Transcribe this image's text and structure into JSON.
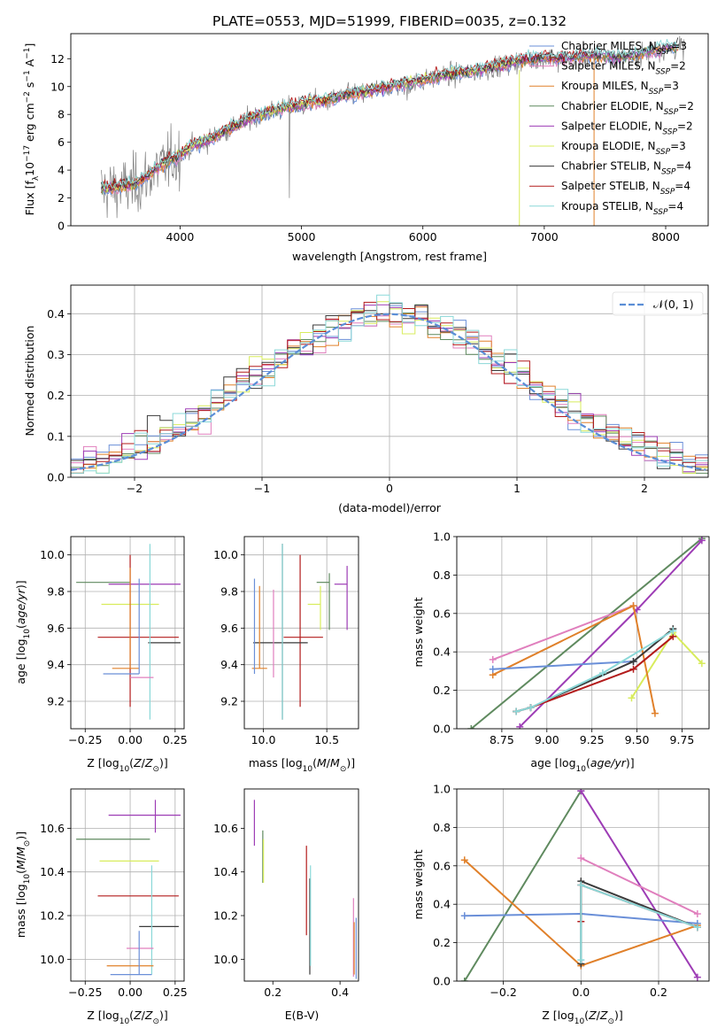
{
  "colors": {
    "Chabrier MILES": "#6a8fd8",
    "Salpeter MILES": "#e07fbd",
    "Kroupa MILES": "#e0802a",
    "Chabrier ELODIE": "#5f8a5f",
    "Salpeter ELODIE": "#9d3cb5",
    "Kroupa ELODIE": "#d8ec5c",
    "Chabrier STELIB": "#3a3a3a",
    "Salpeter STELIB": "#b31b1b",
    "Kroupa STELIB": "#8ad8d8",
    "data": "#808080",
    "normal": "#5b8ed6"
  },
  "chart_data": [
    {
      "id": "spectrum",
      "type": "line",
      "title": "PLATE=0553, MJD=51999, FIBERID=0035, z=0.132",
      "xlabel": "wavelength [Angstrom, rest frame]",
      "ylabel": "Flux [f_λ10^-17 erg cm^-2 s^-1 A^-1]",
      "xlim": [
        3100,
        8350
      ],
      "ylim": [
        0,
        13.8
      ],
      "xticks": [
        4000,
        5000,
        6000,
        7000,
        8000
      ],
      "yticks": [
        0,
        2,
        4,
        6,
        8,
        10,
        12
      ],
      "legend": [
        "Chabrier MILES, N_SSP=3",
        "Salpeter MILES, N_SSP=2",
        "Kroupa MILES, N_SSP=3",
        "Chabrier ELODIE, N_SSP=2",
        "Salpeter ELODIE, N_SSP=2",
        "Kroupa ELODIE, N_SSP=3",
        "Chabrier STELIB, N_SSP=4",
        "Salpeter STELIB, N_SSP=4",
        "Kroupa STELIB, N_SSP=4"
      ],
      "legend_position": "upper right",
      "continuum": [
        [
          3350,
          2.6
        ],
        [
          3500,
          2.7
        ],
        [
          3600,
          2.8
        ],
        [
          3700,
          3.3
        ],
        [
          3800,
          4.0
        ],
        [
          3900,
          4.6
        ],
        [
          4000,
          5.0
        ],
        [
          4100,
          5.7
        ],
        [
          4200,
          6.0
        ],
        [
          4300,
          6.4
        ],
        [
          4400,
          6.9
        ],
        [
          4500,
          7.3
        ],
        [
          4600,
          7.8
        ],
        [
          4700,
          8.0
        ],
        [
          4800,
          8.3
        ],
        [
          4900,
          8.5
        ],
        [
          5000,
          8.6
        ],
        [
          5100,
          8.9
        ],
        [
          5200,
          8.9
        ],
        [
          5300,
          9.2
        ],
        [
          5400,
          9.4
        ],
        [
          5500,
          9.5
        ],
        [
          5600,
          9.7
        ],
        [
          5700,
          9.9
        ],
        [
          5800,
          10.1
        ],
        [
          5900,
          10.2
        ],
        [
          6000,
          10.4
        ],
        [
          6100,
          10.6
        ],
        [
          6200,
          10.8
        ],
        [
          6300,
          10.9
        ],
        [
          6400,
          11.0
        ],
        [
          6500,
          11.2
        ],
        [
          6600,
          11.4
        ],
        [
          6700,
          11.6
        ],
        [
          6800,
          11.8
        ],
        [
          6900,
          11.9
        ],
        [
          7000,
          12.1
        ],
        [
          7100,
          11.9
        ],
        [
          7200,
          12.0
        ],
        [
          7300,
          12.1
        ],
        [
          7400,
          12.2
        ],
        [
          7500,
          12.2
        ],
        [
          7600,
          12.0
        ],
        [
          7700,
          12.2
        ],
        [
          7800,
          12.3
        ],
        [
          7900,
          12.5
        ],
        [
          8000,
          12.7
        ],
        [
          8100,
          12.8
        ]
      ]
    },
    {
      "id": "residuals",
      "type": "line",
      "xlabel": "(data-model)/error",
      "ylabel": "Normed distribution",
      "xlim": [
        -2.5,
        2.5
      ],
      "ylim": [
        0,
        0.47
      ],
      "xticks": [
        -2,
        -1,
        0,
        1,
        2
      ],
      "yticks": [
        0.0,
        0.1,
        0.2,
        0.3,
        0.4
      ],
      "legend": [
        "𝒩(0, 1)"
      ],
      "legend_position": "upper right",
      "grid": true,
      "bin_width": 0.1
    },
    {
      "id": "age_vs_Z",
      "type": "scatter",
      "xlabel": "Z [log10(Z/Z⊙)]",
      "ylabel": "age  [log10(age/yr)]",
      "xlim": [
        -0.33,
        0.3
      ],
      "ylim": [
        9.05,
        10.1
      ],
      "xticks": [
        -0.25,
        0.0,
        0.25
      ],
      "yticks": [
        9.2,
        9.4,
        9.6,
        9.8,
        10.0
      ],
      "grid": true,
      "points": [
        {
          "model": "Chabrier ELODIE",
          "x": 0.0,
          "xerr": [
            0.3,
            0.0
          ],
          "y": 9.85,
          "yerr": [
            0.0,
            0.0
          ]
        },
        {
          "model": "Salpeter ELODIE",
          "x": 0.14,
          "xerr": [
            0.26,
            0.14
          ],
          "y": 9.84,
          "yerr": [
            0.0,
            0.0
          ]
        },
        {
          "model": "Kroupa ELODIE",
          "x": 0.0,
          "xerr": [
            0.16,
            0.16
          ],
          "y": 9.73,
          "yerr": [
            0.0,
            0.0
          ]
        },
        {
          "model": "Salpeter STELIB",
          "x": 0.0,
          "xerr": [
            0.18,
            0.27
          ],
          "y": 9.55,
          "yerr": [
            0.38,
            0.45
          ]
        },
        {
          "model": "Chabrier STELIB",
          "x": 0.2,
          "xerr": [
            0.1,
            0.08
          ],
          "y": 9.52,
          "yerr": [
            0.0,
            0.0
          ]
        },
        {
          "model": "Kroupa STELIB",
          "x": 0.11,
          "xerr": [
            0.0,
            0.0
          ],
          "y": 9.52,
          "yerr": [
            0.42,
            0.54
          ]
        },
        {
          "model": "Kroupa MILES",
          "x": 0.0,
          "xerr": [
            0.1,
            0.05
          ],
          "y": 9.38,
          "yerr": [
            0.0,
            0.55
          ]
        },
        {
          "model": "Chabrier MILES",
          "x": 0.05,
          "xerr": [
            0.2,
            0.0
          ],
          "y": 9.35,
          "yerr": [
            0.0,
            0.52
          ]
        },
        {
          "model": "Salpeter MILES",
          "x": 0.1,
          "xerr": [
            0.1,
            0.03
          ],
          "y": 9.33,
          "yerr": [
            0.0,
            0.0
          ]
        }
      ]
    },
    {
      "id": "age_vs_mass",
      "type": "scatter",
      "xlabel": "mass [log10(M/M⊙)]",
      "xlim": [
        9.85,
        10.75
      ],
      "ylim": [
        9.05,
        10.1
      ],
      "xticks": [
        10.0,
        10.5
      ],
      "yticks": [
        9.2,
        9.4,
        9.6,
        9.8,
        10.0
      ],
      "grid": true,
      "points": [
        {
          "model": "Chabrier ELODIE",
          "x": 10.52,
          "xerr": [
            0.1,
            0.0
          ],
          "y": 9.85,
          "yerr": [
            0.26,
            0.05
          ]
        },
        {
          "model": "Salpeter ELODIE",
          "x": 10.66,
          "xerr": [
            0.1,
            0.0
          ],
          "y": 9.84,
          "yerr": [
            0.25,
            0.1
          ]
        },
        {
          "model": "Kroupa ELODIE",
          "x": 10.45,
          "xerr": [
            0.1,
            0.0
          ],
          "y": 9.73,
          "yerr": [
            0.14,
            0.1
          ]
        },
        {
          "model": "Salpeter STELIB",
          "x": 10.29,
          "xerr": [
            0.13,
            0.18
          ],
          "y": 9.55,
          "yerr": [
            0.38,
            0.45
          ]
        },
        {
          "model": "Chabrier STELIB",
          "x": 10.15,
          "xerr": [
            0.23,
            0.2
          ],
          "y": 9.52,
          "yerr": [
            0.42,
            0.54
          ]
        },
        {
          "model": "Kroupa STELIB",
          "x": 10.15,
          "xerr": [
            0.0,
            0.0
          ],
          "y": 9.52,
          "yerr": [
            0.42,
            0.54
          ]
        },
        {
          "model": "Kroupa MILES",
          "x": 9.97,
          "xerr": [
            0.06,
            0.06
          ],
          "y": 9.38,
          "yerr": [
            0.0,
            0.45
          ]
        },
        {
          "model": "Chabrier MILES",
          "x": 9.93,
          "xerr": [
            0.0,
            0.0
          ],
          "y": 9.35,
          "yerr": [
            0.0,
            0.52
          ]
        },
        {
          "model": "Salpeter MILES",
          "x": 10.08,
          "xerr": [
            0.0,
            0.0
          ],
          "y": 9.33,
          "yerr": [
            0.0,
            0.48
          ]
        }
      ]
    },
    {
      "id": "weight_vs_age",
      "type": "line",
      "xlabel": "age  [log10(age/yr)]",
      "ylabel": "mass weight",
      "xlim": [
        8.5,
        9.9
      ],
      "ylim": [
        0,
        1.0
      ],
      "xticks": [
        8.75,
        9.0,
        9.25,
        9.5,
        9.75
      ],
      "yticks": [
        0.0,
        0.2,
        0.4,
        0.6,
        0.8,
        1.0
      ],
      "grid": true,
      "series": [
        {
          "name": "Chabrier ELODIE",
          "x": [
            8.58,
            9.86
          ],
          "y": [
            0.0,
            0.99
          ]
        },
        {
          "name": "Salpeter ELODIE",
          "x": [
            8.85,
            9.5,
            9.86
          ],
          "y": [
            0.01,
            0.62,
            0.98
          ]
        },
        {
          "name": "Kroupa ELODIE",
          "x": [
            9.47,
            9.7,
            9.86
          ],
          "y": [
            0.16,
            0.5,
            0.34
          ]
        },
        {
          "name": "Salpeter MILES",
          "x": [
            8.7,
            9.48
          ],
          "y": [
            0.36,
            0.64
          ]
        },
        {
          "name": "Kroupa MILES",
          "x": [
            8.7,
            9.48,
            9.6
          ],
          "y": [
            0.28,
            0.64,
            0.08
          ]
        },
        {
          "name": "Chabrier MILES",
          "x": [
            8.7,
            9.48
          ],
          "y": [
            0.31,
            0.35
          ]
        },
        {
          "name": "Chabrier STELIB",
          "x": [
            8.83,
            8.91,
            9.48,
            9.7
          ],
          "y": [
            0.09,
            0.11,
            0.35,
            0.52
          ]
        },
        {
          "name": "Salpeter STELIB",
          "x": [
            8.83,
            8.91,
            9.48,
            9.7
          ],
          "y": [
            0.09,
            0.11,
            0.31,
            0.48
          ]
        },
        {
          "name": "Kroupa STELIB",
          "x": [
            8.83,
            8.91,
            9.31,
            9.7
          ],
          "y": [
            0.09,
            0.11,
            0.29,
            0.51
          ]
        }
      ]
    },
    {
      "id": "mass_vs_Z",
      "type": "scatter",
      "xlabel": "Z [log10(Z/Z⊙)]",
      "ylabel": "mass [log10(M/M⊙)]",
      "xlim": [
        -0.33,
        0.3
      ],
      "ylim": [
        9.9,
        10.78
      ],
      "xticks": [
        -0.25,
        0.0,
        0.25
      ],
      "yticks": [
        10.0,
        10.2,
        10.4,
        10.6
      ],
      "grid": true,
      "points": [
        {
          "model": "Salpeter ELODIE",
          "x": 0.14,
          "xerr": [
            0.26,
            0.14
          ],
          "y": 10.66,
          "yerr": [
            0.08,
            0.07
          ]
        },
        {
          "model": "Chabrier ELODIE",
          "x": 0.0,
          "xerr": [
            0.3,
            0.11
          ],
          "y": 10.55,
          "yerr": [
            0.0,
            0.0
          ]
        },
        {
          "model": "Kroupa ELODIE",
          "x": 0.0,
          "xerr": [
            0.17,
            0.16
          ],
          "y": 10.45,
          "yerr": [
            0.0,
            0.0
          ]
        },
        {
          "model": "Salpeter STELIB",
          "x": 0.0,
          "xerr": [
            0.18,
            0.27
          ],
          "y": 10.29,
          "yerr": [
            0.0,
            0.0
          ]
        },
        {
          "model": "Chabrier STELIB",
          "x": 0.13,
          "xerr": [
            0.08,
            0.14
          ],
          "y": 10.15,
          "yerr": [
            0.0,
            0.0
          ]
        },
        {
          "model": "Kroupa STELIB",
          "x": 0.12,
          "xerr": [
            0.0,
            0.0
          ],
          "y": 10.15,
          "yerr": [
            0.22,
            0.28
          ]
        },
        {
          "model": "Salpeter MILES",
          "x": 0.08,
          "xerr": [
            0.1,
            0.05
          ],
          "y": 10.05,
          "yerr": [
            0.0,
            0.0
          ]
        },
        {
          "model": "Kroupa MILES",
          "x": 0.0,
          "xerr": [
            0.13,
            0.13
          ],
          "y": 9.97,
          "yerr": [
            0.0,
            0.0
          ]
        },
        {
          "model": "Chabrier MILES",
          "x": 0.05,
          "xerr": [
            0.16,
            0.07
          ],
          "y": 9.93,
          "yerr": [
            0.0,
            0.2
          ]
        }
      ]
    },
    {
      "id": "mass_vs_ebv",
      "type": "scatter",
      "xlabel": "E(B-V)",
      "xlim": [
        0.115,
        0.455
      ],
      "ylim": [
        9.9,
        10.78
      ],
      "xticks": [
        0.2,
        0.4
      ],
      "yticks": [
        10.0,
        10.2,
        10.4,
        10.6
      ],
      "points": [
        {
          "model": "Salpeter ELODIE",
          "x": 0.145,
          "y": 10.62,
          "yerr": [
            0.1,
            0.11
          ]
        },
        {
          "model": "Chabrier ELODIE",
          "x": 0.17,
          "y": 10.47,
          "yerr": [
            0.12,
            0.12
          ]
        },
        {
          "model": "Kroupa ELODIE",
          "x": 0.172,
          "y": 10.45,
          "yerr": [
            0.1,
            0.1
          ]
        },
        {
          "model": "Salpeter STELIB",
          "x": 0.3,
          "y": 10.29,
          "yerr": [
            0.18,
            0.23
          ]
        },
        {
          "model": "Chabrier STELIB",
          "x": 0.31,
          "y": 10.15,
          "yerr": [
            0.22,
            0.22
          ]
        },
        {
          "model": "Kroupa STELIB",
          "x": 0.312,
          "y": 10.2,
          "yerr": [
            0.23,
            0.23
          ]
        },
        {
          "model": "Salpeter MILES",
          "x": 0.44,
          "y": 10.1,
          "yerr": [
            0.18,
            0.18
          ]
        },
        {
          "model": "Kroupa MILES",
          "x": 0.442,
          "y": 10.05,
          "yerr": [
            0.12,
            0.12
          ]
        },
        {
          "model": "Chabrier MILES",
          "x": 0.448,
          "y": 10.05,
          "yerr": [
            0.14,
            0.14
          ]
        }
      ]
    },
    {
      "id": "weight_vs_Z",
      "type": "line",
      "xlabel": "Z [log10(Z/Z⊙)]",
      "ylabel": "mass weight",
      "xlim": [
        -0.32,
        0.33
      ],
      "ylim": [
        0,
        1.0
      ],
      "xticks": [
        -0.2,
        0.0,
        0.2
      ],
      "yticks": [
        0.0,
        0.2,
        0.4,
        0.6,
        0.8,
        1.0
      ],
      "grid": true,
      "series": [
        {
          "name": "Chabrier ELODIE",
          "x": [
            -0.3,
            0.0
          ],
          "y": [
            0.0,
            0.99
          ]
        },
        {
          "name": "Salpeter ELODIE",
          "x": [
            0.0,
            0.3
          ],
          "y": [
            0.99,
            0.02
          ]
        },
        {
          "name": "Kroupa MILES",
          "x": [
            -0.3,
            0.0,
            0.3
          ],
          "y": [
            0.63,
            0.08,
            0.29
          ]
        },
        {
          "name": "Chabrier MILES",
          "x": [
            -0.3,
            0.0,
            0.3
          ],
          "y": [
            0.34,
            0.35,
            0.3
          ]
        },
        {
          "name": "Salpeter MILES",
          "x": [
            0.0,
            0.3
          ],
          "y": [
            0.64,
            0.35
          ]
        },
        {
          "name": "Chabrier STELIB",
          "x": [
            0.0,
            0.0,
            0.3
          ],
          "y": [
            0.09,
            0.52,
            0.28
          ]
        },
        {
          "name": "Salpeter STELIB",
          "x": [
            0.0,
            0.0,
            0.3
          ],
          "y": [
            0.31,
            0.5,
            0.28
          ]
        },
        {
          "name": "Kroupa STELIB",
          "x": [
            0.0,
            0.0,
            0.3
          ],
          "y": [
            0.11,
            0.5,
            0.28
          ]
        }
      ]
    }
  ]
}
